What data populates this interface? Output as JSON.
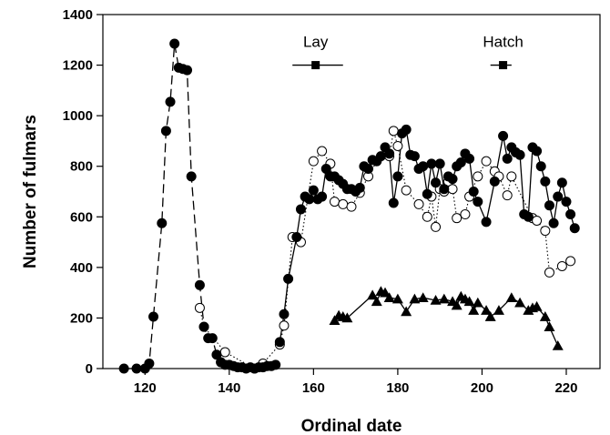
{
  "chart_data": {
    "type": "line",
    "title": "",
    "xlabel": "Ordinal date",
    "ylabel": "Number of fulmars",
    "xlim": [
      110,
      228
    ],
    "ylim": [
      0,
      1400
    ],
    "x_ticks": [
      120,
      140,
      160,
      180,
      200,
      220
    ],
    "y_ticks": [
      0,
      200,
      400,
      600,
      800,
      1000,
      1200,
      1400
    ],
    "grid": false,
    "series": [
      {
        "marker": "filled-circle",
        "segments": [
          {
            "style": "solid",
            "points": [
              [
                115,
                0
              ],
              [
                118,
                0
              ],
              [
                120,
                0
              ]
            ]
          },
          {
            "style": "dashed",
            "points": [
              [
                120,
                0
              ],
              [
                121,
                20
              ],
              [
                122,
                205
              ],
              [
                124,
                575
              ],
              [
                125,
                940
              ],
              [
                126,
                1055
              ],
              [
                127,
                1285
              ],
              [
                128,
                1190
              ],
              [
                129,
                1185
              ],
              [
                130,
                1180
              ],
              [
                131,
                760
              ],
              [
                133,
                330
              ],
              [
                134,
                165
              ],
              [
                135,
                120
              ],
              [
                136,
                120
              ],
              [
                137,
                55
              ],
              [
                138,
                25
              ],
              [
                139,
                15
              ]
            ]
          },
          {
            "style": "solid",
            "points": [
              [
                139,
                15
              ],
              [
                140,
                15
              ],
              [
                141,
                10
              ],
              [
                142,
                5
              ],
              [
                143,
                5
              ],
              [
                144,
                0
              ],
              [
                145,
                5
              ],
              [
                146,
                0
              ],
              [
                147,
                5
              ],
              [
                148,
                5
              ],
              [
                149,
                10
              ],
              [
                150,
                10
              ],
              [
                151,
                15
              ]
            ]
          },
          {
            "style": "solid",
            "points": [
              [
                152,
                105
              ],
              [
                153,
                215
              ],
              [
                154,
                355
              ],
              [
                156,
                520
              ],
              [
                157,
                630
              ],
              [
                158,
                680
              ],
              [
                159,
                670
              ],
              [
                160,
                705
              ],
              [
                161,
                670
              ],
              [
                162,
                680
              ],
              [
                163,
                790
              ],
              [
                164,
                760
              ],
              [
                165,
                760
              ],
              [
                166,
                745
              ],
              [
                167,
                730
              ],
              [
                168,
                710
              ],
              [
                169,
                710
              ],
              [
                170,
                700
              ],
              [
                171,
                715
              ],
              [
                172,
                800
              ],
              [
                173,
                790
              ],
              [
                174,
                825
              ],
              [
                175,
                820
              ],
              [
                176,
                840
              ],
              [
                177,
                875
              ],
              [
                178,
                850
              ],
              [
                179,
                655
              ],
              [
                180,
                760
              ],
              [
                181,
                930
              ],
              [
                182,
                945
              ],
              [
                183,
                845
              ],
              [
                184,
                840
              ],
              [
                185,
                790
              ],
              [
                186,
                800
              ],
              [
                187,
                690
              ],
              [
                188,
                810
              ],
              [
                189,
                735
              ],
              [
                190,
                810
              ],
              [
                191,
                710
              ],
              [
                192,
                760
              ],
              [
                193,
                750
              ],
              [
                194,
                800
              ],
              [
                195,
                815
              ],
              [
                196,
                850
              ],
              [
                197,
                830
              ],
              [
                198,
                700
              ],
              [
                199,
                660
              ],
              [
                201,
                580
              ],
              [
                203,
                740
              ],
              [
                205,
                920
              ],
              [
                206,
                830
              ],
              [
                207,
                875
              ],
              [
                208,
                855
              ],
              [
                209,
                845
              ],
              [
                210,
                610
              ],
              [
                211,
                600
              ],
              [
                212,
                875
              ],
              [
                213,
                860
              ],
              [
                214,
                800
              ],
              [
                215,
                740
              ],
              [
                216,
                645
              ],
              [
                217,
                575
              ],
              [
                218,
                680
              ],
              [
                219,
                735
              ],
              [
                220,
                660
              ],
              [
                221,
                610
              ],
              [
                222,
                555
              ]
            ]
          }
        ]
      },
      {
        "marker": "open-circle",
        "segments": [
          {
            "style": "dotted",
            "points": [
              [
                133,
                240
              ],
              [
                134,
                165
              ],
              [
                139,
                65
              ],
              [
                146,
                0
              ],
              [
                148,
                20
              ],
              [
                152,
                95
              ],
              [
                153,
                170
              ],
              [
                155,
                520
              ],
              [
                157,
                500
              ],
              [
                160,
                820
              ],
              [
                162,
                860
              ],
              [
                164,
                810
              ],
              [
                165,
                660
              ],
              [
                167,
                650
              ],
              [
                169,
                640
              ],
              [
                171,
                695
              ],
              [
                173,
                760
              ],
              [
                175,
                820
              ],
              [
                178,
                840
              ],
              [
                179,
                940
              ],
              [
                180,
                880
              ],
              [
                182,
                705
              ],
              [
                185,
                650
              ],
              [
                187,
                600
              ],
              [
                188,
                680
              ],
              [
                189,
                560
              ],
              [
                190,
                710
              ],
              [
                191,
                700
              ],
              [
                192,
                740
              ],
              [
                193,
                710
              ],
              [
                194,
                595
              ],
              [
                196,
                610
              ],
              [
                197,
                680
              ],
              [
                199,
                760
              ],
              [
                201,
                820
              ],
              [
                203,
                780
              ],
              [
                204,
                760
              ],
              [
                206,
                685
              ],
              [
                207,
                760
              ],
              [
                212,
                595
              ],
              [
                213,
                585
              ],
              [
                215,
                545
              ],
              [
                216,
                380
              ],
              [
                219,
                405
              ],
              [
                221,
                425
              ]
            ]
          }
        ]
      },
      {
        "marker": "filled-triangle",
        "segments": [
          {
            "style": "solid",
            "points": [
              [
                165,
                190
              ],
              [
                166,
                210
              ],
              [
                167,
                205
              ],
              [
                168,
                200
              ],
              [
                174,
                290
              ],
              [
                175,
                265
              ],
              [
                176,
                305
              ],
              [
                177,
                300
              ],
              [
                178,
                280
              ],
              [
                180,
                275
              ],
              [
                182,
                225
              ],
              [
                184,
                275
              ],
              [
                186,
                280
              ],
              [
                189,
                270
              ],
              [
                191,
                275
              ],
              [
                193,
                265
              ],
              [
                194,
                250
              ],
              [
                195,
                285
              ],
              [
                196,
                275
              ],
              [
                197,
                265
              ],
              [
                198,
                230
              ],
              [
                199,
                260
              ],
              [
                201,
                230
              ],
              [
                202,
                205
              ],
              [
                204,
                230
              ],
              [
                207,
                280
              ],
              [
                209,
                260
              ],
              [
                211,
                230
              ],
              [
                212,
                240
              ],
              [
                213,
                245
              ],
              [
                215,
                205
              ],
              [
                216,
                165
              ],
              [
                218,
                90
              ]
            ]
          }
        ]
      }
    ],
    "annotations": [
      {
        "label": "Lay",
        "range": [
          155,
          167
        ],
        "marker_x": 160.5,
        "level": 1200
      },
      {
        "label": "Hatch",
        "range": [
          202,
          207
        ],
        "marker_x": 205,
        "level": 1200
      }
    ]
  }
}
